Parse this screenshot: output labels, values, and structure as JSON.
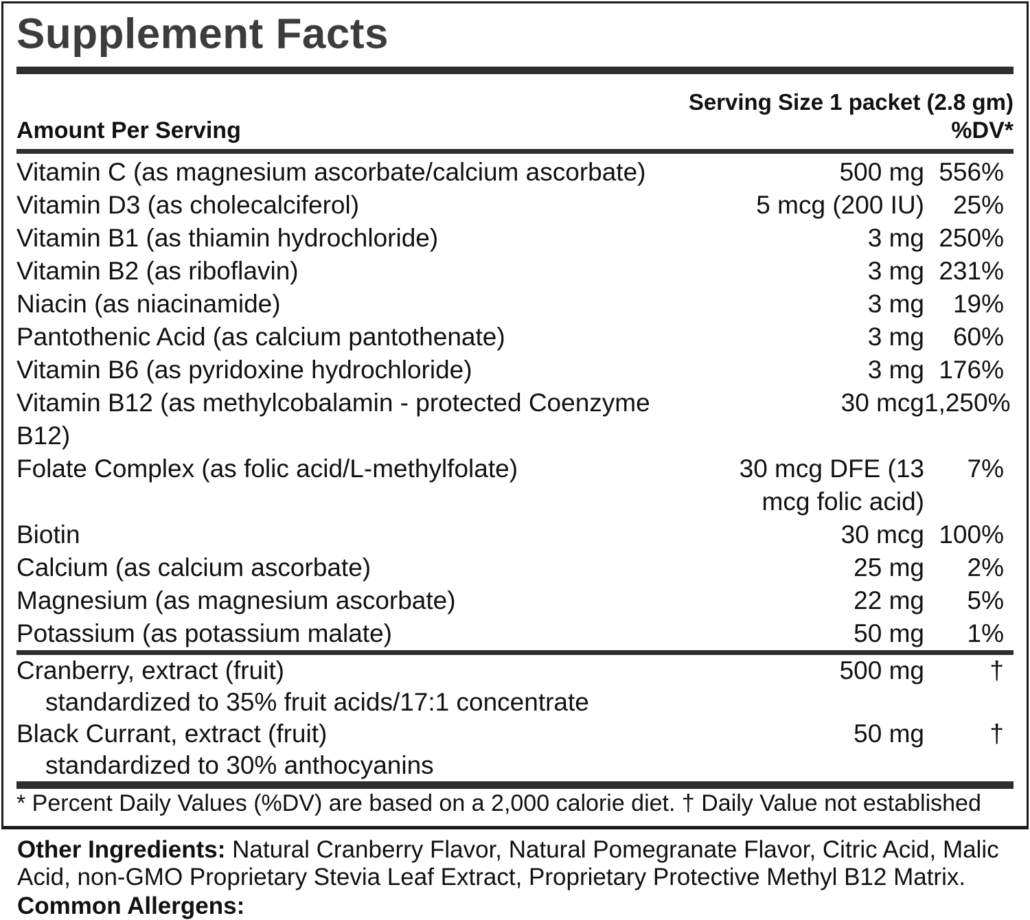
{
  "panel": {
    "title": "Supplement Facts",
    "serving_size": "Serving Size 1 packet (2.8 gm)",
    "amount_header": "Amount Per Serving",
    "dv_header": "%DV*",
    "nutrient_rows": [
      {
        "name": "Vitamin C (as magnesium ascorbate/calcium ascorbate)",
        "amount": "500 mg",
        "dv": "556%"
      },
      {
        "name": "Vitamin D3 (as cholecalciferol)",
        "amount": "5 mcg (200 IU)",
        "dv": "25%"
      },
      {
        "name": "Vitamin B1 (as thiamin hydrochloride)",
        "amount": "3 mg",
        "dv": "250%"
      },
      {
        "name": "Vitamin B2 (as riboflavin)",
        "amount": "3 mg",
        "dv": "231%"
      },
      {
        "name": "Niacin (as niacinamide)",
        "amount": "3 mg",
        "dv": "19%"
      },
      {
        "name": "Pantothenic Acid (as calcium pantothenate)",
        "amount": "3 mg",
        "dv": "60%"
      },
      {
        "name": "Vitamin B6 (as pyridoxine hydrochloride)",
        "amount": "3 mg",
        "dv": "176%"
      },
      {
        "name": "Vitamin B12 (as methylcobalamin - protected Coenzyme\nB12)",
        "amount": "30 mcg",
        "dv": "1,250%"
      },
      {
        "name": "Folate Complex (as folic acid/L-methylfolate)",
        "amount": "30 mcg DFE (13\nmcg folic acid)",
        "dv": "7%"
      },
      {
        "name": "Biotin",
        "amount": "30 mcg",
        "dv": "100%"
      },
      {
        "name": "Calcium (as calcium ascorbate)",
        "amount": "25 mg",
        "dv": "2%"
      },
      {
        "name": "Magnesium (as magnesium ascorbate)",
        "amount": "22 mg",
        "dv": "5%"
      },
      {
        "name": "Potassium (as potassium malate)",
        "amount": "50 mg",
        "dv": "1%"
      }
    ],
    "botanical_rows": [
      {
        "name": "Cranberry, extract (fruit)",
        "amount": "500 mg",
        "dv": "†",
        "sub": "standardized to 35% fruit acids/17:1 concentrate"
      },
      {
        "name": "Black Currant, extract (fruit)",
        "amount": "50 mg",
        "dv": "†",
        "sub": "standardized to 30% anthocyanins"
      }
    ],
    "footnote": "* Percent Daily Values (%DV) are based on a 2,000 calorie diet. † Daily Value not established"
  },
  "below": {
    "other_ingredients_label": "Other Ingredients:",
    "other_ingredients_text": " Natural Cranberry Flavor, Natural Pomegranate Flavor, Citric Acid, Malic Acid, non-GMO Proprietary Stevia Leaf Extract, Proprietary Protective Methyl B12 Matrix.",
    "allergens_label": "Common Allergens:"
  },
  "colors": {
    "background": "#ffffff",
    "text": "#111111",
    "title": "#3c3c3c",
    "rule": "#2e2e2e",
    "border": "#1c1c1c"
  }
}
